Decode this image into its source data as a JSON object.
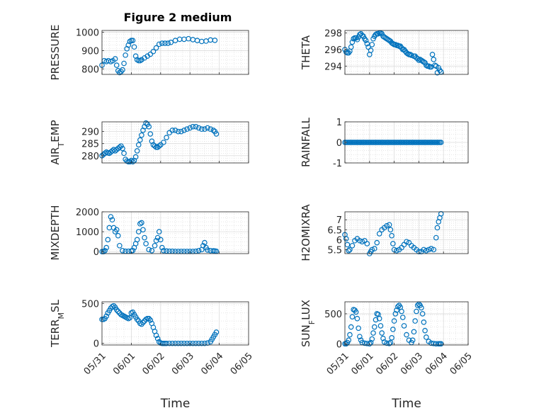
{
  "figure": {
    "title": "Figure 2 medium"
  },
  "marker_color": "#0072bd",
  "chart_data": [
    {
      "type": "scatter",
      "ylabel": "PRESSURE",
      "ylim": [
        770,
        1010
      ],
      "yticks": [
        800,
        900,
        1000
      ],
      "ytick_labels": [
        "800",
        "900",
        "1000"
      ],
      "xlim": [
        0,
        5
      ],
      "xticks": [
        0,
        1,
        2,
        3,
        4,
        5
      ],
      "xtick_labels": [
        "05/31",
        "06/01",
        "06/02",
        "06/03",
        "06/04",
        "06/05"
      ],
      "xlabel": "",
      "x": [
        0,
        0.08,
        0.15,
        0.22,
        0.3,
        0.37,
        0.45,
        0.5,
        0.55,
        0.6,
        0.65,
        0.7,
        0.75,
        0.8,
        0.85,
        0.9,
        0.95,
        1.0,
        1.05,
        1.1,
        1.15,
        1.2,
        1.25,
        1.3,
        1.35,
        1.45,
        1.55,
        1.65,
        1.75,
        1.85,
        1.95,
        2.05,
        2.15,
        2.25,
        2.35,
        2.5,
        2.65,
        2.8,
        2.95,
        3.1,
        3.25,
        3.4,
        3.55,
        3.7,
        3.85
      ],
      "y": [
        820,
        845,
        840,
        845,
        840,
        845,
        855,
        820,
        790,
        780,
        785,
        795,
        830,
        875,
        910,
        930,
        950,
        955,
        955,
        920,
        870,
        850,
        845,
        845,
        850,
        860,
        870,
        880,
        895,
        915,
        935,
        940,
        940,
        940,
        945,
        955,
        962,
        962,
        965,
        960,
        955,
        950,
        952,
        958,
        956
      ]
    },
    {
      "type": "scatter",
      "ylabel": "THETA",
      "ylim": [
        293,
        298.3
      ],
      "yticks": [
        294,
        296,
        298
      ],
      "ytick_labels": [
        "294",
        "296",
        "298"
      ],
      "xlim": [
        0,
        5
      ],
      "xticks": [
        0,
        1,
        2,
        3,
        4,
        5
      ],
      "xtick_labels": [
        "05/31",
        "06/01",
        "06/02",
        "06/03",
        "06/04",
        "06/05"
      ],
      "xlabel": "",
      "x": [
        0,
        0.05,
        0.1,
        0.15,
        0.2,
        0.25,
        0.3,
        0.35,
        0.4,
        0.45,
        0.5,
        0.55,
        0.6,
        0.65,
        0.7,
        0.75,
        0.8,
        0.85,
        0.9,
        0.95,
        1.0,
        1.05,
        1.1,
        1.15,
        1.2,
        1.25,
        1.3,
        1.35,
        1.4,
        1.45,
        1.5,
        1.55,
        1.6,
        1.65,
        1.7,
        1.75,
        1.8,
        1.85,
        1.9,
        1.95,
        2.0,
        2.05,
        2.1,
        2.15,
        2.2,
        2.25,
        2.3,
        2.35,
        2.4,
        2.45,
        2.5,
        2.55,
        2.6,
        2.65,
        2.7,
        2.8,
        2.85,
        2.9,
        2.95,
        3.0,
        3.05,
        3.1,
        3.15,
        3.2,
        3.25,
        3.3,
        3.35,
        3.4,
        3.45,
        3.5,
        3.55,
        3.6,
        3.65,
        3.7,
        3.75,
        3.8,
        3.85,
        3.9
      ],
      "y": [
        296.0,
        295.7,
        295.6,
        295.6,
        295.8,
        296.3,
        296.9,
        297.3,
        297.4,
        297.4,
        297.2,
        297.5,
        297.8,
        297.9,
        297.7,
        297.6,
        297.3,
        297.1,
        296.7,
        296.3,
        295.4,
        295.9,
        296.6,
        297.3,
        297.6,
        297.8,
        297.9,
        297.9,
        298.0,
        298.0,
        297.9,
        297.6,
        297.5,
        297.4,
        297.3,
        297.2,
        297.1,
        297.0,
        296.8,
        296.7,
        296.6,
        296.6,
        296.5,
        296.5,
        296.4,
        296.4,
        296.2,
        296.0,
        296.0,
        295.8,
        295.6,
        295.5,
        295.4,
        295.4,
        295.3,
        295.2,
        295.2,
        295.0,
        294.9,
        294.7,
        294.8,
        294.7,
        294.6,
        294.5,
        294.4,
        294.1,
        294.0,
        294.0,
        293.9,
        293.9,
        295.4,
        294.8,
        294.1,
        294.0,
        293.2,
        293.8,
        293.5,
        293.3
      ]
    },
    {
      "type": "scatter",
      "ylabel": "AIR_TEMP",
      "ylim": [
        277,
        294
      ],
      "yticks": [
        280,
        285,
        290
      ],
      "ytick_labels": [
        "280",
        "285",
        "290"
      ],
      "xlim": [
        0,
        5
      ],
      "xticks": [
        0,
        1,
        2,
        3,
        4,
        5
      ],
      "xtick_labels": [
        "05/31",
        "06/01",
        "06/02",
        "06/03",
        "06/04",
        "06/05"
      ],
      "xlabel": "",
      "x": [
        0,
        0.05,
        0.1,
        0.15,
        0.2,
        0.25,
        0.3,
        0.35,
        0.4,
        0.45,
        0.5,
        0.55,
        0.6,
        0.65,
        0.7,
        0.75,
        0.8,
        0.85,
        0.9,
        0.95,
        1.0,
        1.05,
        1.1,
        1.15,
        1.2,
        1.25,
        1.3,
        1.35,
        1.4,
        1.45,
        1.5,
        1.55,
        1.6,
        1.65,
        1.7,
        1.75,
        1.8,
        1.85,
        1.9,
        1.95,
        2.0,
        2.1,
        2.2,
        2.3,
        2.4,
        2.5,
        2.6,
        2.7,
        2.8,
        2.9,
        3.0,
        3.1,
        3.2,
        3.3,
        3.4,
        3.5,
        3.6,
        3.7,
        3.8,
        3.85,
        3.9
      ],
      "y": [
        280.0,
        280.5,
        281.0,
        281.5,
        281.2,
        281.0,
        281.5,
        282.0,
        282.5,
        282.0,
        282.5,
        283.0,
        283.5,
        284.0,
        283.0,
        281.0,
        278.5,
        277.8,
        277.5,
        277.5,
        278.0,
        277.5,
        278.0,
        279.5,
        282.0,
        284.5,
        286.5,
        288.5,
        290.5,
        292.0,
        293.5,
        293.0,
        292.0,
        289.0,
        286.0,
        284.5,
        284.0,
        283.5,
        283.5,
        284.0,
        284.5,
        285.5,
        287.5,
        289.5,
        290.5,
        290.5,
        290.0,
        290.0,
        290.5,
        291.0,
        291.5,
        292.0,
        292.0,
        291.5,
        291.0,
        291.0,
        291.5,
        291.0,
        290.5,
        290.0,
        289.0
      ]
    },
    {
      "type": "scatter",
      "ylabel": "RAINFALL",
      "ylim": [
        -1,
        1
      ],
      "yticks": [
        -1,
        0,
        1
      ],
      "ytick_labels": [
        "-1",
        "0",
        "1"
      ],
      "xlim": [
        0,
        5
      ],
      "xticks": [
        0,
        1,
        2,
        3,
        4,
        5
      ],
      "xtick_labels": [
        "05/31",
        "06/01",
        "06/02",
        "06/03",
        "06/04",
        "06/05"
      ],
      "xlabel": "",
      "x": [
        0,
        0.05,
        0.1,
        0.15,
        0.2,
        0.25,
        0.3,
        0.35,
        0.4,
        0.45,
        0.5,
        0.55,
        0.6,
        0.65,
        0.7,
        0.75,
        0.8,
        0.85,
        0.9,
        0.95,
        1.0,
        1.05,
        1.1,
        1.15,
        1.2,
        1.25,
        1.3,
        1.35,
        1.4,
        1.45,
        1.5,
        1.55,
        1.6,
        1.65,
        1.7,
        1.75,
        1.8,
        1.85,
        1.9,
        1.95,
        2.0,
        2.05,
        2.1,
        2.15,
        2.2,
        2.25,
        2.3,
        2.35,
        2.4,
        2.45,
        2.5,
        2.55,
        2.6,
        2.65,
        2.7,
        2.75,
        2.8,
        2.85,
        2.9,
        2.95,
        3.0,
        3.05,
        3.1,
        3.15,
        3.2,
        3.25,
        3.3,
        3.35,
        3.4,
        3.45,
        3.5,
        3.55,
        3.6,
        3.65,
        3.7,
        3.75,
        3.8,
        3.85,
        3.9
      ],
      "y": [
        0,
        0,
        0,
        0,
        0,
        0,
        0,
        0,
        0,
        0,
        0,
        0,
        0,
        0,
        0,
        0,
        0,
        0,
        0,
        0,
        0,
        0,
        0,
        0,
        0,
        0,
        0,
        0,
        0,
        0,
        0,
        0,
        0,
        0,
        0,
        0,
        0,
        0,
        0,
        0,
        0,
        0,
        0,
        0,
        0,
        0,
        0,
        0,
        0,
        0,
        0,
        0,
        0,
        0,
        0,
        0,
        0,
        0,
        0,
        0,
        0,
        0,
        0,
        0,
        0,
        0,
        0,
        0,
        0,
        0,
        0,
        0,
        0,
        0,
        0,
        0,
        0,
        0,
        0
      ]
    },
    {
      "type": "scatter",
      "ylabel": "MIXDEPTH",
      "ylim": [
        -100,
        2000
      ],
      "yticks": [
        0,
        1000,
        2000
      ],
      "ytick_labels": [
        "0",
        "1000",
        "2000"
      ],
      "xlim": [
        0,
        5
      ],
      "xticks": [
        0,
        1,
        2,
        3,
        4,
        5
      ],
      "xtick_labels": [
        "05/31",
        "06/01",
        "06/02",
        "06/03",
        "06/04",
        "06/05"
      ],
      "xlabel": "",
      "x": [
        0,
        0.05,
        0.1,
        0.15,
        0.2,
        0.25,
        0.3,
        0.35,
        0.4,
        0.45,
        0.5,
        0.55,
        0.6,
        0.7,
        0.8,
        0.9,
        1.0,
        1.05,
        1.1,
        1.15,
        1.2,
        1.25,
        1.3,
        1.35,
        1.4,
        1.45,
        1.5,
        1.6,
        1.7,
        1.8,
        1.85,
        1.9,
        1.95,
        2.0,
        2.05,
        2.1,
        2.2,
        2.3,
        2.4,
        2.5,
        2.6,
        2.7,
        2.8,
        2.9,
        3.0,
        3.1,
        3.2,
        3.3,
        3.4,
        3.45,
        3.5,
        3.55,
        3.6,
        3.7,
        3.8,
        3.85,
        3.9
      ],
      "y": [
        0,
        0,
        50,
        200,
        600,
        1200,
        1750,
        1600,
        1200,
        1000,
        1100,
        800,
        300,
        50,
        20,
        20,
        30,
        60,
        200,
        400,
        600,
        1000,
        1400,
        1450,
        1100,
        700,
        400,
        100,
        50,
        300,
        550,
        700,
        1000,
        600,
        200,
        50,
        30,
        20,
        20,
        10,
        10,
        10,
        10,
        10,
        10,
        10,
        20,
        50,
        100,
        300,
        450,
        200,
        80,
        50,
        40,
        30,
        20
      ]
    },
    {
      "type": "scatter",
      "ylabel": "H2OMIXRA",
      "ylim": [
        5.3,
        7.4
      ],
      "yticks": [
        5.5,
        6,
        6.5,
        7
      ],
      "ytick_labels": [
        "5.5",
        "6",
        "6.5",
        "7"
      ],
      "xlim": [
        0,
        5
      ],
      "xticks": [
        0,
        1,
        2,
        3,
        4,
        5
      ],
      "xtick_labels": [
        "05/31",
        "06/01",
        "06/02",
        "06/03",
        "06/04",
        "06/05"
      ],
      "xlabel": "",
      "x": [
        0,
        0.05,
        0.1,
        0.15,
        0.2,
        0.3,
        0.4,
        0.5,
        0.6,
        0.7,
        0.8,
        0.9,
        1.0,
        1.05,
        1.1,
        1.2,
        1.3,
        1.4,
        1.5,
        1.6,
        1.7,
        1.8,
        1.85,
        1.9,
        1.95,
        2.0,
        2.1,
        2.2,
        2.3,
        2.4,
        2.5,
        2.6,
        2.7,
        2.8,
        2.9,
        3.0,
        3.1,
        3.2,
        3.3,
        3.4,
        3.5,
        3.6,
        3.7,
        3.75,
        3.8,
        3.85,
        3.9
      ],
      "y": [
        6.25,
        6.05,
        5.75,
        5.45,
        5.5,
        5.7,
        5.95,
        6.05,
        5.95,
        5.9,
        5.95,
        5.8,
        5.3,
        5.4,
        5.5,
        5.55,
        5.85,
        6.3,
        6.5,
        6.6,
        6.7,
        6.75,
        6.5,
        6.2,
        5.8,
        5.5,
        5.45,
        5.5,
        5.6,
        5.75,
        5.9,
        5.85,
        5.7,
        5.6,
        5.5,
        5.4,
        5.4,
        5.5,
        5.45,
        5.5,
        5.55,
        5.5,
        6.1,
        6.6,
        6.9,
        7.1,
        7.3
      ]
    },
    {
      "type": "scatter",
      "ylabel": "TERR_MSL",
      "ylim": [
        -20,
        520
      ],
      "yticks": [
        0,
        500
      ],
      "ytick_labels": [
        "0",
        "500"
      ],
      "xlim": [
        0,
        5
      ],
      "xticks": [
        0,
        1,
        2,
        3,
        4,
        5
      ],
      "xtick_labels": [
        "05/31",
        "06/01",
        "06/02",
        "06/03",
        "06/04",
        "06/05"
      ],
      "xlabel": "Time",
      "x": [
        0,
        0.05,
        0.1,
        0.15,
        0.2,
        0.25,
        0.3,
        0.35,
        0.4,
        0.45,
        0.5,
        0.55,
        0.6,
        0.65,
        0.7,
        0.75,
        0.8,
        0.85,
        0.9,
        0.95,
        1.0,
        1.05,
        1.1,
        1.15,
        1.2,
        1.25,
        1.3,
        1.35,
        1.4,
        1.45,
        1.5,
        1.55,
        1.6,
        1.65,
        1.7,
        1.75,
        1.8,
        1.85,
        1.9,
        1.95,
        2.0,
        2.05,
        2.1,
        2.15,
        2.2,
        2.3,
        2.4,
        2.5,
        2.6,
        2.7,
        2.8,
        2.9,
        3.0,
        3.1,
        3.2,
        3.3,
        3.4,
        3.5,
        3.6,
        3.7,
        3.75,
        3.8,
        3.85,
        3.9
      ],
      "y": [
        300,
        300,
        310,
        340,
        380,
        410,
        440,
        460,
        470,
        450,
        420,
        400,
        380,
        360,
        350,
        340,
        330,
        320,
        310,
        320,
        380,
        390,
        360,
        330,
        300,
        280,
        250,
        240,
        260,
        280,
        300,
        310,
        310,
        290,
        250,
        200,
        150,
        100,
        60,
        20,
        5,
        0,
        0,
        0,
        0,
        0,
        0,
        0,
        0,
        0,
        0,
        0,
        0,
        0,
        0,
        0,
        0,
        0,
        5,
        20,
        50,
        80,
        110,
        140
      ]
    },
    {
      "type": "scatter",
      "ylabel": "SUN_FLUX",
      "ylim": [
        -20,
        700
      ],
      "yticks": [
        0,
        500
      ],
      "ytick_labels": [
        "0",
        "500"
      ],
      "xlim": [
        0,
        5
      ],
      "xticks": [
        0,
        1,
        2,
        3,
        4,
        5
      ],
      "xtick_labels": [
        "05/31",
        "06/01",
        "06/02",
        "06/03",
        "06/04",
        "06/05"
      ],
      "xlabel": "Time",
      "x": [
        0,
        0.05,
        0.1,
        0.15,
        0.2,
        0.25,
        0.3,
        0.35,
        0.4,
        0.45,
        0.5,
        0.55,
        0.6,
        0.65,
        0.7,
        0.8,
        0.9,
        1.0,
        1.05,
        1.1,
        1.15,
        1.2,
        1.25,
        1.3,
        1.35,
        1.4,
        1.45,
        1.5,
        1.55,
        1.6,
        1.7,
        1.8,
        1.85,
        1.9,
        1.95,
        2.0,
        2.05,
        2.1,
        2.15,
        2.2,
        2.25,
        2.3,
        2.35,
        2.4,
        2.5,
        2.6,
        2.7,
        2.75,
        2.8,
        2.85,
        2.9,
        2.95,
        3.0,
        3.05,
        3.1,
        3.15,
        3.2,
        3.25,
        3.3,
        3.4,
        3.5,
        3.6,
        3.7,
        3.8,
        3.85,
        3.9
      ],
      "y": [
        0,
        0,
        20,
        60,
        150,
        280,
        450,
        570,
        560,
        530,
        420,
        260,
        120,
        60,
        20,
        10,
        5,
        0,
        20,
        80,
        180,
        280,
        400,
        500,
        490,
        420,
        300,
        180,
        90,
        30,
        10,
        5,
        20,
        100,
        240,
        380,
        500,
        560,
        620,
        640,
        610,
        540,
        440,
        300,
        150,
        60,
        20,
        60,
        200,
        380,
        540,
        640,
        660,
        640,
        600,
        500,
        360,
        220,
        110,
        40,
        10,
        5,
        0,
        0,
        0,
        0
      ]
    }
  ]
}
